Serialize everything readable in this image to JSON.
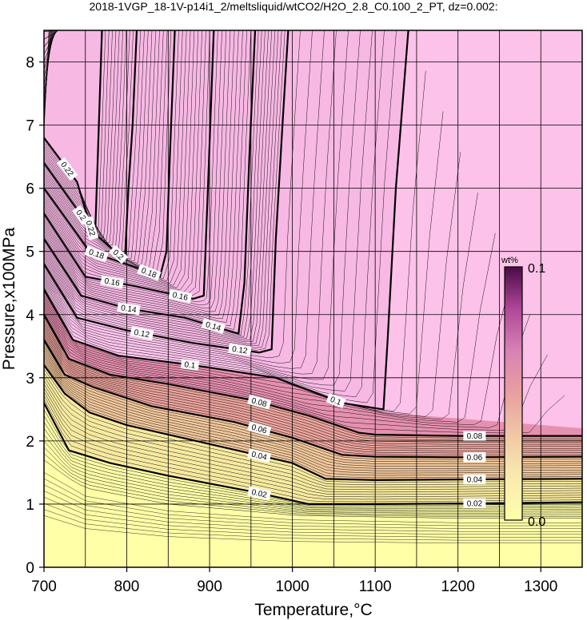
{
  "chart_data": {
    "type": "contour",
    "title": "2018-1VGP_18-1V-p14i1_2/meltsliquid/wtCO2/H2O_2.8_C0.100_2_PT, dz=0.002:",
    "xlabel": "Temperature,°C",
    "ylabel": "Pressure,x100MPa",
    "xlim": [
      700,
      1350
    ],
    "ylim": [
      0,
      8.5
    ],
    "xticks": [
      "700",
      "800",
      "900",
      "1000",
      "1100",
      "1200",
      "1300"
    ],
    "yticks": [
      "0",
      "1",
      "2",
      "3",
      "4",
      "5",
      "6",
      "7",
      "8"
    ],
    "grid": true,
    "colorbar": {
      "unit": "wt%",
      "min_label": "0.0",
      "max_label": "0.1",
      "colors": [
        "#ffffa8",
        "#f9ebb0",
        "#f0c8a6",
        "#e8a0a0",
        "#d882b4",
        "#b04898",
        "#4a0a48"
      ],
      "saturated_color": "#ffc8f0"
    },
    "contours_labeled": [
      {
        "level": "0.02",
        "points": [
          [
            700,
            2.6
          ],
          [
            730,
            1.85
          ],
          [
            780,
            1.65
          ],
          [
            850,
            1.45
          ],
          [
            950,
            1.2
          ],
          [
            1020,
            1.0
          ],
          [
            1100,
            1.0
          ],
          [
            1200,
            1.01
          ],
          [
            1350,
            1.03
          ]
        ]
      },
      {
        "level": "0.04",
        "points": [
          [
            700,
            3.2
          ],
          [
            725,
            2.75
          ],
          [
            755,
            2.45
          ],
          [
            800,
            2.25
          ],
          [
            900,
            1.95
          ],
          [
            1000,
            1.65
          ],
          [
            1040,
            1.4
          ],
          [
            1100,
            1.38
          ],
          [
            1200,
            1.39
          ],
          [
            1350,
            1.4
          ]
        ]
      },
      {
        "level": "0.06",
        "points": [
          [
            700,
            3.6
          ],
          [
            725,
            3.05
          ],
          [
            760,
            2.85
          ],
          [
            830,
            2.55
          ],
          [
            930,
            2.3
          ],
          [
            1000,
            2.05
          ],
          [
            1060,
            1.78
          ],
          [
            1100,
            1.75
          ],
          [
            1200,
            1.74
          ],
          [
            1350,
            1.75
          ]
        ]
      },
      {
        "level": "0.08",
        "points": [
          [
            700,
            4.0
          ],
          [
            730,
            3.3
          ],
          [
            780,
            3.05
          ],
          [
            850,
            2.9
          ],
          [
            950,
            2.65
          ],
          [
            1020,
            2.4
          ],
          [
            1080,
            2.13
          ],
          [
            1100,
            2.1
          ],
          [
            1200,
            2.08
          ],
          [
            1350,
            2.08
          ]
        ]
      },
      {
        "level": "0.1",
        "points": [
          [
            700,
            4.4
          ],
          [
            735,
            3.6
          ],
          [
            790,
            3.35
          ],
          [
            880,
            3.2
          ],
          [
            980,
            3.0
          ],
          [
            1060,
            2.6
          ],
          [
            1110,
            2.5
          ],
          [
            1115,
            3.6
          ],
          [
            1125,
            6.0
          ],
          [
            1140,
            8.5
          ]
        ]
      },
      {
        "level": "0.12",
        "points": [
          [
            700,
            4.8
          ],
          [
            740,
            3.95
          ],
          [
            800,
            3.75
          ],
          [
            880,
            3.55
          ],
          [
            960,
            3.4
          ],
          [
            975,
            3.45
          ],
          [
            980,
            5.2
          ],
          [
            988,
            7.0
          ],
          [
            995,
            8.5
          ]
        ]
      },
      {
        "level": "0.14",
        "points": [
          [
            700,
            5.2
          ],
          [
            745,
            4.3
          ],
          [
            800,
            4.1
          ],
          [
            870,
            3.95
          ],
          [
            935,
            3.7
          ],
          [
            942,
            4.5
          ],
          [
            948,
            6.5
          ],
          [
            955,
            8.5
          ]
        ]
      },
      {
        "level": "0.16",
        "points": [
          [
            700,
            5.6
          ],
          [
            750,
            4.6
          ],
          [
            810,
            4.45
          ],
          [
            880,
            4.25
          ],
          [
            893,
            4.3
          ],
          [
            898,
            6.0
          ],
          [
            905,
            8.5
          ]
        ]
      },
      {
        "level": "0.18",
        "points": [
          [
            700,
            6.0
          ],
          [
            755,
            5.0
          ],
          [
            810,
            4.75
          ],
          [
            840,
            4.6
          ],
          [
            848,
            5.0
          ],
          [
            852,
            6.5
          ],
          [
            858,
            8.5
          ]
        ]
      },
      {
        "level": "0.2",
        "points": [
          [
            700,
            6.4
          ],
          [
            760,
            5.3
          ],
          [
            790,
            4.95
          ],
          [
            798,
            4.95
          ],
          [
            802,
            6.0
          ],
          [
            807,
            7.0
          ],
          [
            812,
            8.5
          ]
        ]
      },
      {
        "level": "0.22",
        "points": [
          [
            700,
            6.8
          ],
          [
            740,
            6.1
          ],
          [
            758,
            5.3
          ],
          [
            762,
            5.35
          ],
          [
            765,
            6.5
          ],
          [
            770,
            8.5
          ]
        ]
      }
    ],
    "contour_interval": "0.002"
  }
}
